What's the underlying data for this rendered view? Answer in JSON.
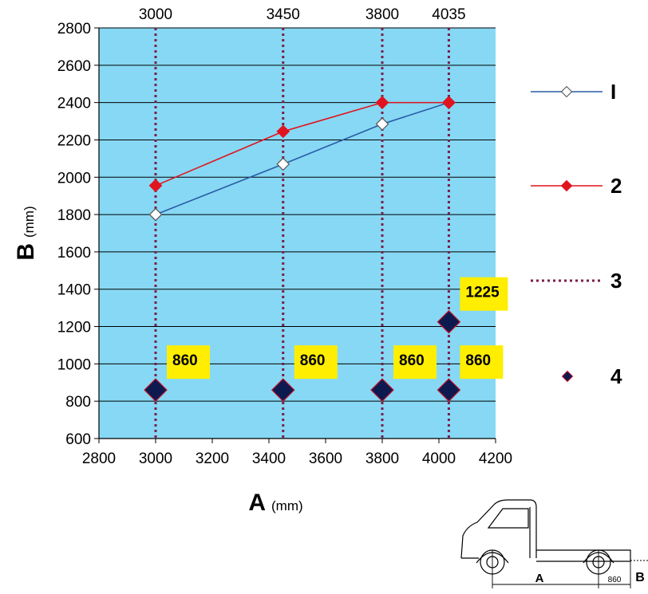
{
  "chart_data": {
    "type": "line",
    "xlabel": "A",
    "xlabel_unit": "(mm)",
    "ylabel": "B",
    "ylabel_unit": "(mm)",
    "xlim": [
      2800,
      4200
    ],
    "ylim": [
      600,
      2800
    ],
    "x_ticks": [
      2800,
      3000,
      3200,
      3400,
      3600,
      3800,
      4000,
      4200
    ],
    "y_ticks": [
      600,
      800,
      1000,
      1200,
      1400,
      1600,
      1800,
      2000,
      2200,
      2400,
      2600,
      2800
    ],
    "grid": "horizontal",
    "plot_background": "#87d8f4",
    "legend_position": "right",
    "vertical_reference_lines": {
      "x": [
        3000,
        3450,
        3800,
        4035
      ],
      "labels": [
        "3000",
        "3450",
        "3800",
        "4035"
      ],
      "color": "#7a1f4a"
    },
    "series": [
      {
        "name": "1",
        "x": [
          3000,
          3450,
          3800,
          4035
        ],
        "values": [
          1800,
          2070,
          2285,
          2400
        ],
        "color": "#2a5ca8",
        "marker": "open-diamond"
      },
      {
        "name": "2",
        "x": [
          3000,
          3450,
          3800,
          4035
        ],
        "values": [
          1955,
          2245,
          2400,
          2400
        ],
        "color": "#e0141e",
        "marker": "filled-diamond"
      }
    ],
    "points_4": {
      "name": "4",
      "x": [
        3000,
        3450,
        3800,
        4035,
        4035
      ],
      "values": [
        860,
        860,
        860,
        860,
        1225
      ],
      "labels": [
        "860",
        "860",
        "860",
        "860",
        "1225"
      ],
      "marker_color": "#0d1a4f",
      "label_background": "#ffee00"
    },
    "legend": [
      {
        "label": "I",
        "kind": "line-open-diamond",
        "color": "#2a5ca8"
      },
      {
        "label": "2",
        "kind": "line-filled-diamond",
        "color": "#e0141e"
      },
      {
        "label": "3",
        "kind": "dotted-line",
        "color": "#7a1f4a"
      },
      {
        "label": "4",
        "kind": "diamond-point",
        "color": "#0d1a4f"
      }
    ]
  },
  "truck_diagram": {
    "labels": {
      "a": "A",
      "dim": "860",
      "b": "B"
    }
  }
}
